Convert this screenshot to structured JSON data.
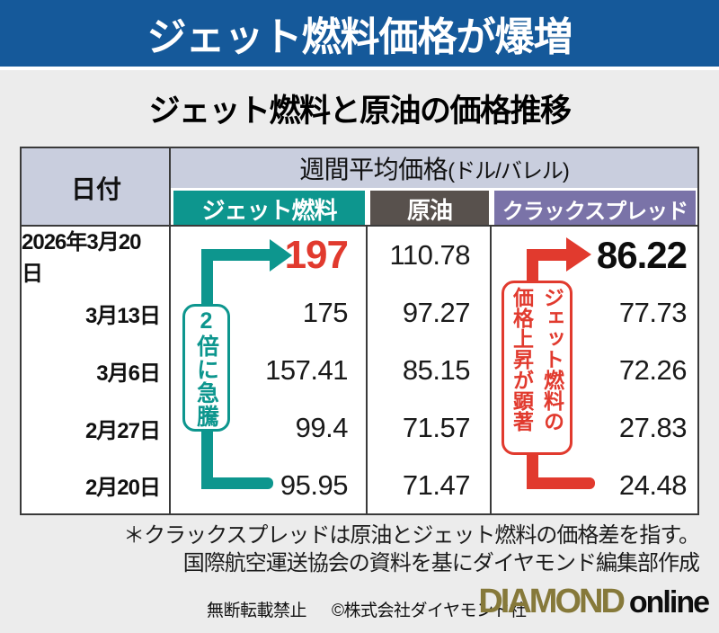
{
  "banner": {
    "title": "ジェット燃料価格が爆増"
  },
  "subtitle": "ジェット燃料と原油の価格推移",
  "table": {
    "date_header": "日付",
    "group_header": "週間平均価格",
    "group_header_unit": "(ドル/バレル)",
    "columns": [
      {
        "label": "ジェット燃料",
        "color": "#0d968e"
      },
      {
        "label": "原油",
        "color": "#58514d"
      },
      {
        "label": "クラックスプレッド",
        "color": "#7a73a8"
      }
    ],
    "rows": [
      {
        "date": "2026年3月20日",
        "jet_fuel": "197",
        "crude_oil": "110.78",
        "crack_spread": "86.22"
      },
      {
        "date": "3月13日",
        "jet_fuel": "175",
        "crude_oil": "97.27",
        "crack_spread": "77.73"
      },
      {
        "date": "3月6日",
        "jet_fuel": "157.41",
        "crude_oil": "85.15",
        "crack_spread": "72.26"
      },
      {
        "date": "2月27日",
        "jet_fuel": "99.4",
        "crude_oil": "71.57",
        "crack_spread": "27.83"
      },
      {
        "date": "2月20日",
        "jet_fuel": "95.95",
        "crude_oil": "71.47",
        "crack_spread": "24.48"
      }
    ]
  },
  "annotations": {
    "jet_fuel_badge": "2倍に急騰",
    "crack_spread_badge": "ジェット燃料の価格上昇が顕著"
  },
  "notes": [
    "＊クラックスプレッドは原油とジェット燃料の価格差を指す。",
    "国際航空運送協会の資料を基にダイヤモンド編集部作成"
  ],
  "footer": {
    "no_reproduction": "無断転載禁止",
    "copyright": "©株式会社ダイヤモンド社",
    "logo_diamond": "DIAMOND",
    "logo_online": "online"
  },
  "colors": {
    "banner_blue": "#15599a",
    "background": "#ececec",
    "header_lavender": "#c9cede",
    "teal": "#0d968e",
    "dark_brown": "#58514d",
    "purple": "#7a73a8",
    "red": "#e13a2e",
    "gold": "#86793a"
  },
  "chart_data": {
    "type": "table",
    "title": "ジェット燃料と原油の価格推移",
    "unit": "ドル/バレル",
    "categories": [
      "2026年3月20日",
      "3月13日",
      "3月6日",
      "2月27日",
      "2月20日"
    ],
    "series": [
      {
        "name": "ジェット燃料",
        "values": [
          197,
          175,
          157.41,
          99.4,
          95.95
        ]
      },
      {
        "name": "原油",
        "values": [
          110.78,
          97.27,
          85.15,
          71.57,
          71.47
        ]
      },
      {
        "name": "クラックスプレッド",
        "values": [
          86.22,
          77.73,
          72.26,
          27.83,
          24.48
        ]
      }
    ],
    "annotations": [
      {
        "target": "ジェット燃料",
        "text": "2倍に急騰",
        "from": "95.95",
        "to": "197",
        "color": "#0d968e"
      },
      {
        "target": "クラックスプレッド",
        "text": "ジェット燃料の価格上昇が顕著",
        "from": "24.48",
        "to": "86.22",
        "color": "#e13a2e"
      }
    ],
    "footnote": "＊クラックスプレッドは原油とジェット燃料の価格差を指す。国際航空運送協会の資料を基にダイヤモンド編集部作成"
  }
}
